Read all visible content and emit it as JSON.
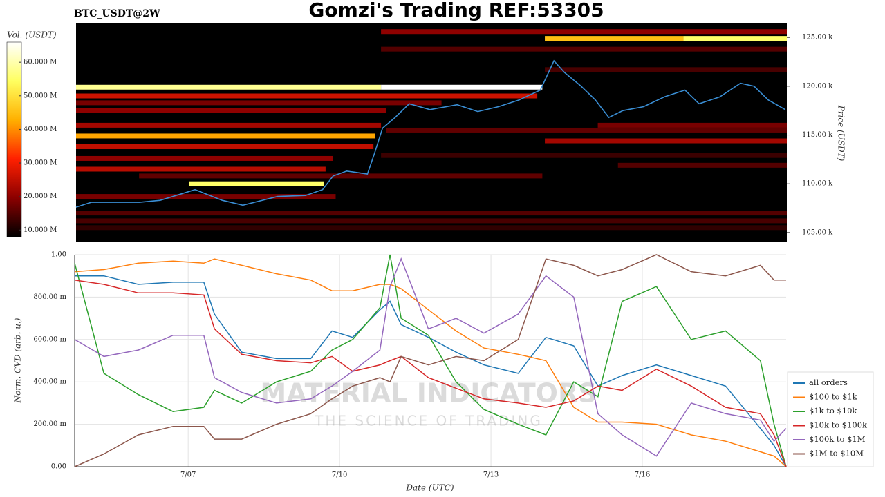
{
  "chart_data": [
    {
      "type": "heatmap",
      "title": "Gomzi's Trading REF:53305",
      "subtitle": "BTC_USDT@2W",
      "ylabel": "Price (USDT)",
      "colorbar_label": "Vol. (USDT)",
      "xlim": [
        4.75,
        18.85
      ],
      "ylim": [
        104000,
        126500
      ],
      "yticks": [
        {
          "value": 105000,
          "label": "105.00 k"
        },
        {
          "value": 110000,
          "label": "110.00 k"
        },
        {
          "value": 115000,
          "label": "115.00 k"
        },
        {
          "value": 120000,
          "label": "120.00 k"
        },
        {
          "value": 125000,
          "label": "125.00 k"
        }
      ],
      "clim": [
        8000000,
        66000000
      ],
      "cticks": [
        {
          "value": 10000000,
          "label": "10.000 M"
        },
        {
          "value": 20000000,
          "label": "20.000 M"
        },
        {
          "value": 30000000,
          "label": "30.000 M"
        },
        {
          "value": 40000000,
          "label": "40.000 M"
        },
        {
          "value": 50000000,
          "label": "50.000 M"
        },
        {
          "value": 60000000,
          "label": "60.000 M"
        }
      ],
      "colormap": [
        "#000000",
        "#8b0000",
        "#ff2000",
        "#ffb000",
        "#ffff60",
        "#ffffff"
      ],
      "levels": [
        {
          "price": 119900,
          "start": 4.75,
          "end": 10.8,
          "volume": 58000000
        },
        {
          "price": 119900,
          "start": 10.8,
          "end": 14.0,
          "volume": 66000000
        },
        {
          "price": 124900,
          "start": 14.05,
          "end": 16.8,
          "volume": 45000000
        },
        {
          "price": 124900,
          "start": 16.8,
          "end": 18.85,
          "volume": 55000000
        },
        {
          "price": 114900,
          "start": 4.75,
          "end": 10.68,
          "volume": 42000000
        },
        {
          "price": 110000,
          "start": 6.99,
          "end": 9.66,
          "volume": 55000000
        },
        {
          "price": 119000,
          "start": 4.75,
          "end": 13.9,
          "volume": 26000000
        },
        {
          "price": 117500,
          "start": 4.75,
          "end": 10.9,
          "volume": 20000000
        },
        {
          "price": 116000,
          "start": 4.75,
          "end": 10.8,
          "volume": 22000000
        },
        {
          "price": 113800,
          "start": 4.75,
          "end": 10.65,
          "volume": 25000000
        },
        {
          "price": 112600,
          "start": 4.75,
          "end": 9.85,
          "volume": 20000000
        },
        {
          "price": 111500,
          "start": 4.75,
          "end": 9.7,
          "volume": 24000000
        },
        {
          "price": 108700,
          "start": 4.75,
          "end": 9.9,
          "volume": 18000000
        },
        {
          "price": 107000,
          "start": 4.75,
          "end": 18.85,
          "volume": 15000000
        },
        {
          "price": 106200,
          "start": 4.75,
          "end": 18.85,
          "volume": 14000000
        },
        {
          "price": 125600,
          "start": 10.8,
          "end": 18.85,
          "volume": 20000000
        },
        {
          "price": 123800,
          "start": 10.8,
          "end": 18.85,
          "volume": 15000000
        },
        {
          "price": 121700,
          "start": 14.05,
          "end": 18.85,
          "volume": 14000000
        },
        {
          "price": 114400,
          "start": 14.05,
          "end": 18.85,
          "volume": 22000000
        },
        {
          "price": 111900,
          "start": 15.5,
          "end": 18.85,
          "volume": 15000000
        },
        {
          "price": 116000,
          "start": 15.1,
          "end": 18.85,
          "volume": 18000000
        },
        {
          "price": 112900,
          "start": 10.8,
          "end": 18.85,
          "volume": 13000000
        },
        {
          "price": 105500,
          "start": 4.75,
          "end": 18.85,
          "volume": 12000000
        },
        {
          "price": 118300,
          "start": 4.75,
          "end": 12.0,
          "volume": 18000000
        },
        {
          "price": 110800,
          "start": 6.0,
          "end": 14.0,
          "volume": 16000000
        },
        {
          "price": 115500,
          "start": 10.9,
          "end": 18.85,
          "volume": 16000000
        }
      ],
      "price_line": {
        "color": "#3a8ed4",
        "x": [
          4.75,
          5.05,
          6.01,
          6.42,
          7.11,
          7.65,
          8.06,
          8.75,
          9.3,
          9.64,
          9.85,
          10.12,
          10.53,
          10.67,
          10.83,
          11.08,
          11.36,
          11.77,
          12.31,
          12.72,
          13.13,
          13.54,
          13.96,
          14.23,
          14.44,
          14.77,
          15.05,
          15.32,
          15.6,
          16.01,
          16.42,
          16.83,
          17.11,
          17.52,
          17.93,
          18.2,
          18.48,
          18.82
        ],
        "values": [
          107600,
          108100,
          108100,
          108300,
          109400,
          108300,
          107800,
          108700,
          108800,
          109400,
          110800,
          111300,
          111000,
          113100,
          115700,
          116800,
          118200,
          117600,
          118100,
          117400,
          117900,
          118600,
          119600,
          122600,
          121400,
          120000,
          118600,
          116800,
          117500,
          117900,
          118900,
          119600,
          118200,
          118900,
          120300,
          120000,
          118600,
          117600
        ]
      }
    },
    {
      "type": "line",
      "xlabel": "Date (UTC)",
      "ylabel": "Norm. CVD (arb. u.)",
      "annotations": [
        "MATERIAL INDICATORS",
        "THE SCIENCE OF TRADING"
      ],
      "x": [
        4.75,
        5.33,
        6.01,
        6.7,
        7.31,
        7.52,
        8.06,
        8.75,
        9.43,
        9.85,
        10.26,
        10.8,
        11.0,
        11.22,
        11.76,
        12.31,
        12.86,
        13.54,
        14.09,
        14.64,
        15.12,
        15.6,
        16.28,
        16.97,
        17.65,
        18.34,
        18.61,
        18.85
      ],
      "xlim": [
        4.75,
        18.85
      ],
      "xticks": [
        {
          "value": 7,
          "label": "7/07"
        },
        {
          "value": 10,
          "label": "7/10"
        },
        {
          "value": 13,
          "label": "7/13"
        },
        {
          "value": 16,
          "label": "7/16"
        }
      ],
      "ylim": [
        0,
        1
      ],
      "yticks": [
        {
          "value": 0,
          "label": "0.00"
        },
        {
          "value": 0.2,
          "label": "200.00 m"
        },
        {
          "value": 0.4,
          "label": "400.00 m"
        },
        {
          "value": 0.6,
          "label": "600.00 m"
        },
        {
          "value": 0.8,
          "label": "800.00 m"
        },
        {
          "value": 1,
          "label": "1.00"
        }
      ],
      "grid": true,
      "legend": "bottom-right",
      "series": [
        {
          "name": "all orders",
          "color": "#1f77b4",
          "values": [
            0.9,
            0.9,
            0.86,
            0.87,
            0.87,
            0.72,
            0.54,
            0.51,
            0.51,
            0.64,
            0.61,
            0.74,
            0.78,
            0.67,
            0.61,
            0.54,
            0.48,
            0.44,
            0.61,
            0.57,
            0.38,
            0.43,
            0.48,
            0.43,
            0.38,
            0.18,
            0.1,
            0
          ]
        },
        {
          "name": "$100 to $1k",
          "color": "#ff7f0e",
          "values": [
            0.92,
            0.93,
            0.96,
            0.97,
            0.96,
            0.98,
            0.95,
            0.91,
            0.88,
            0.83,
            0.83,
            0.86,
            0.86,
            0.84,
            0.74,
            0.64,
            0.56,
            0.53,
            0.5,
            0.28,
            0.21,
            0.21,
            0.2,
            0.15,
            0.12,
            0.07,
            0.05,
            0
          ]
        },
        {
          "name": "$1k to $10k",
          "color": "#2ca02c",
          "values": [
            0.96,
            0.44,
            0.34,
            0.26,
            0.28,
            0.36,
            0.3,
            0.4,
            0.45,
            0.55,
            0.6,
            0.75,
            1,
            0.7,
            0.62,
            0.4,
            0.27,
            0.2,
            0.15,
            0.4,
            0.33,
            0.78,
            0.85,
            0.6,
            0.64,
            0.5,
            0.2,
            0
          ]
        },
        {
          "name": "$10k to $100k",
          "color": "#d62728",
          "values": [
            0.88,
            0.86,
            0.82,
            0.82,
            0.81,
            0.65,
            0.53,
            0.5,
            0.49,
            0.52,
            0.45,
            0.48,
            0.5,
            0.52,
            0.42,
            0.37,
            0.32,
            0.3,
            0.28,
            0.31,
            0.38,
            0.36,
            0.46,
            0.38,
            0.28,
            0.25,
            0.15,
            0
          ]
        },
        {
          "name": "$100k to $1M",
          "color": "#9467bd",
          "values": [
            0.6,
            0.52,
            0.55,
            0.62,
            0.62,
            0.42,
            0.35,
            0.3,
            0.32,
            0.38,
            0.45,
            0.55,
            0.85,
            0.98,
            0.65,
            0.7,
            0.63,
            0.72,
            0.9,
            0.8,
            0.25,
            0.15,
            0.05,
            0.3,
            0.25,
            0.22,
            0.12,
            0.18
          ]
        },
        {
          "name": "$1M to $10M",
          "color": "#8c564b",
          "values": [
            0,
            0.06,
            0.15,
            0.19,
            0.19,
            0.13,
            0.13,
            0.2,
            0.25,
            0.32,
            0.38,
            0.42,
            0.4,
            0.52,
            0.48,
            0.52,
            0.5,
            0.6,
            0.98,
            0.95,
            0.9,
            0.93,
            1,
            0.92,
            0.9,
            0.95,
            0.88,
            0.88
          ]
        }
      ]
    }
  ]
}
